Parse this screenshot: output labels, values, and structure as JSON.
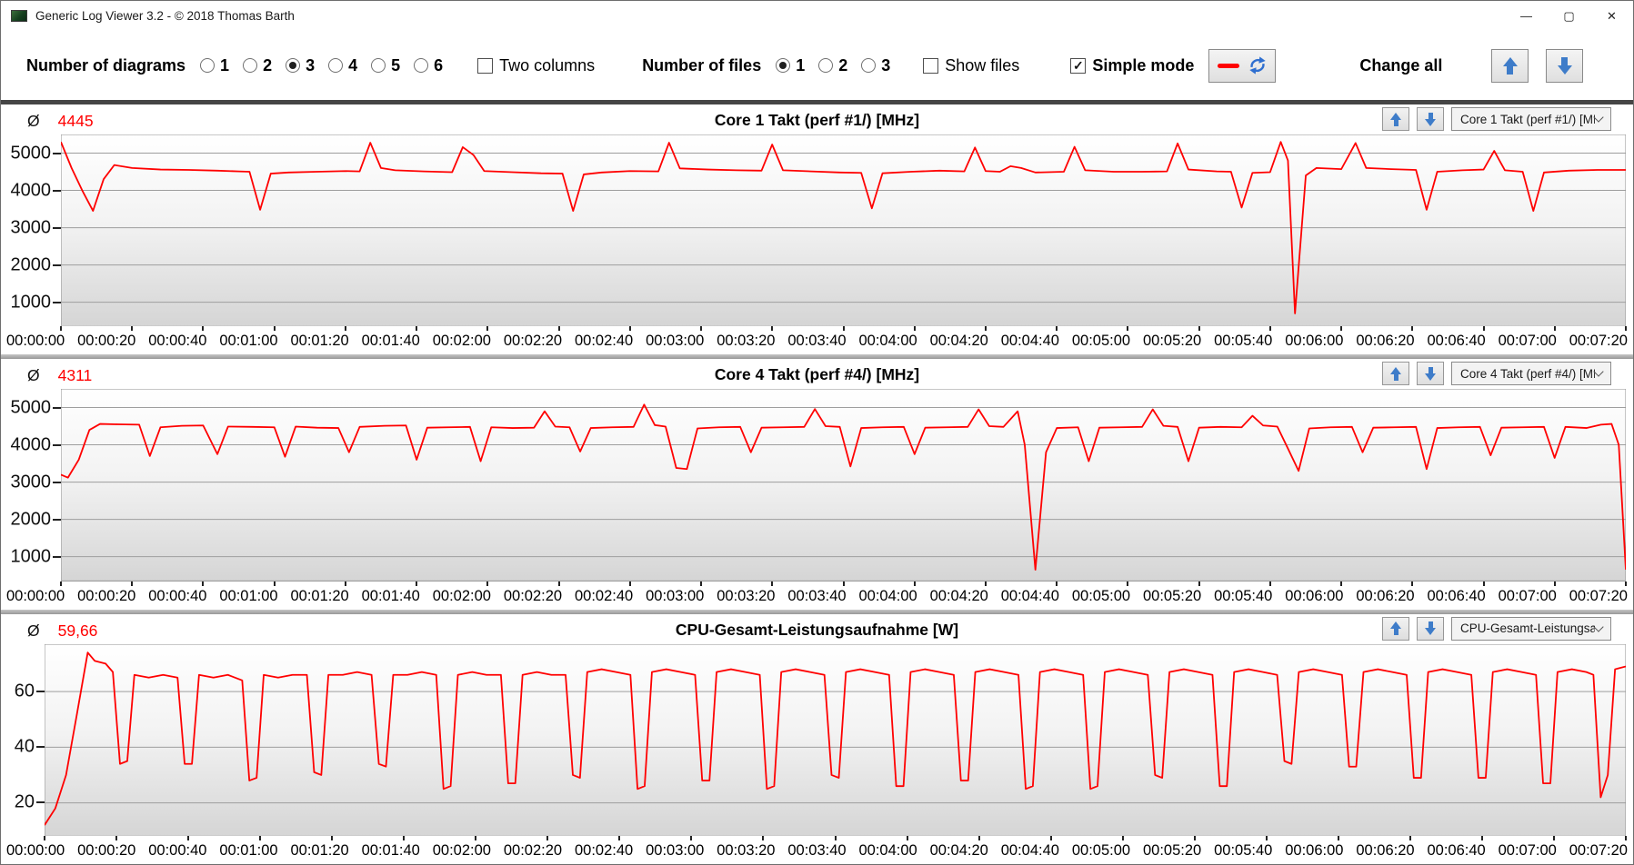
{
  "window": {
    "title": "Generic Log Viewer 3.2 - © 2018 Thomas Barth",
    "icons": {
      "minimize": "—",
      "maximize": "▢",
      "close": "✕"
    }
  },
  "toolbar": {
    "diagrams_label": "Number of diagrams",
    "diagram_options": [
      "1",
      "2",
      "3",
      "4",
      "5",
      "6"
    ],
    "diagrams_selected": "3",
    "two_columns_label": "Two columns",
    "two_columns_checked": false,
    "files_label": "Number of files",
    "file_options": [
      "1",
      "2",
      "3"
    ],
    "files_selected": "1",
    "show_files_label": "Show files",
    "show_files_checked": false,
    "simple_mode_label": "Simple mode",
    "simple_mode_checked": true,
    "change_all_label": "Change all"
  },
  "colors": {
    "line_red": "#ff0000",
    "arrow_blue": "#3e7cc9"
  },
  "x_labels": [
    "00:00:00",
    "00:00:20",
    "00:00:40",
    "00:01:00",
    "00:01:20",
    "00:01:40",
    "00:02:00",
    "00:02:20",
    "00:02:40",
    "00:03:00",
    "00:03:20",
    "00:03:40",
    "00:04:00",
    "00:04:20",
    "00:04:40",
    "00:05:00",
    "00:05:20",
    "00:05:40",
    "00:06:00",
    "00:06:20",
    "00:06:40",
    "00:07:00",
    "00:07:20"
  ],
  "chart_data": [
    {
      "type": "line",
      "title": "Core 1 Takt (perf #1/) [MHz]",
      "avg_symbol": "Ø",
      "average": "4445",
      "dropdown_value": "Core 1 Takt (perf #1/) [MH",
      "line_color": "#ff0000",
      "xlim": [
        0,
        440
      ],
      "x_tick_interval_s": 20,
      "ylim": [
        350,
        5500
      ],
      "yticks": [
        1000,
        2000,
        3000,
        4000,
        5000
      ],
      "series": [
        [
          0,
          5300
        ],
        [
          3,
          4600
        ],
        [
          6,
          4000
        ],
        [
          9,
          3450
        ],
        [
          12,
          4300
        ],
        [
          15,
          4680
        ],
        [
          20,
          4600
        ],
        [
          28,
          4560
        ],
        [
          36,
          4550
        ],
        [
          44,
          4530
        ],
        [
          50,
          4510
        ],
        [
          53,
          4500
        ],
        [
          56,
          3480
        ],
        [
          59,
          4450
        ],
        [
          64,
          4480
        ],
        [
          72,
          4500
        ],
        [
          80,
          4520
        ],
        [
          84,
          4510
        ],
        [
          87,
          5280
        ],
        [
          90,
          4600
        ],
        [
          94,
          4540
        ],
        [
          102,
          4510
        ],
        [
          110,
          4490
        ],
        [
          113,
          5160
        ],
        [
          116,
          4950
        ],
        [
          119,
          4520
        ],
        [
          127,
          4490
        ],
        [
          135,
          4460
        ],
        [
          141,
          4450
        ],
        [
          144,
          3450
        ],
        [
          147,
          4430
        ],
        [
          152,
          4480
        ],
        [
          160,
          4520
        ],
        [
          168,
          4510
        ],
        [
          171,
          5280
        ],
        [
          174,
          4590
        ],
        [
          182,
          4560
        ],
        [
          190,
          4540
        ],
        [
          197,
          4530
        ],
        [
          200,
          5230
        ],
        [
          203,
          4540
        ],
        [
          211,
          4510
        ],
        [
          219,
          4480
        ],
        [
          225,
          4470
        ],
        [
          228,
          3520
        ],
        [
          231,
          4460
        ],
        [
          239,
          4500
        ],
        [
          247,
          4530
        ],
        [
          254,
          4510
        ],
        [
          257,
          5150
        ],
        [
          260,
          4520
        ],
        [
          264,
          4500
        ],
        [
          267,
          4650
        ],
        [
          270,
          4600
        ],
        [
          274,
          4480
        ],
        [
          282,
          4500
        ],
        [
          285,
          5170
        ],
        [
          288,
          4540
        ],
        [
          296,
          4500
        ],
        [
          304,
          4500
        ],
        [
          311,
          4510
        ],
        [
          314,
          5260
        ],
        [
          317,
          4560
        ],
        [
          325,
          4510
        ],
        [
          329,
          4500
        ],
        [
          332,
          3540
        ],
        [
          335,
          4470
        ],
        [
          340,
          4490
        ],
        [
          343,
          5300
        ],
        [
          345,
          4800
        ],
        [
          347,
          700
        ],
        [
          350,
          4400
        ],
        [
          353,
          4600
        ],
        [
          360,
          4570
        ],
        [
          364,
          5270
        ],
        [
          367,
          4600
        ],
        [
          374,
          4570
        ],
        [
          381,
          4550
        ],
        [
          384,
          3480
        ],
        [
          387,
          4500
        ],
        [
          394,
          4540
        ],
        [
          400,
          4560
        ],
        [
          403,
          5060
        ],
        [
          406,
          4540
        ],
        [
          411,
          4500
        ],
        [
          414,
          3450
        ],
        [
          417,
          4480
        ],
        [
          424,
          4530
        ],
        [
          432,
          4550
        ],
        [
          440,
          4550
        ]
      ]
    },
    {
      "type": "line",
      "title": "Core 4 Takt (perf #4/) [MHz]",
      "avg_symbol": "Ø",
      "average": "4311",
      "dropdown_value": "Core 4 Takt (perf #4/) [MH",
      "line_color": "#ff0000",
      "xlim": [
        0,
        440
      ],
      "x_tick_interval_s": 20,
      "ylim": [
        350,
        5500
      ],
      "yticks": [
        1000,
        2000,
        3000,
        4000,
        5000
      ],
      "series": [
        [
          0,
          3200
        ],
        [
          2,
          3120
        ],
        [
          5,
          3600
        ],
        [
          8,
          4400
        ],
        [
          11,
          4560
        ],
        [
          16,
          4550
        ],
        [
          22,
          4540
        ],
        [
          25,
          3700
        ],
        [
          28,
          4470
        ],
        [
          34,
          4510
        ],
        [
          40,
          4520
        ],
        [
          44,
          3750
        ],
        [
          47,
          4490
        ],
        [
          54,
          4480
        ],
        [
          60,
          4470
        ],
        [
          63,
          3680
        ],
        [
          66,
          4490
        ],
        [
          72,
          4460
        ],
        [
          78,
          4450
        ],
        [
          81,
          3800
        ],
        [
          84,
          4480
        ],
        [
          91,
          4510
        ],
        [
          97,
          4520
        ],
        [
          100,
          3600
        ],
        [
          103,
          4460
        ],
        [
          109,
          4470
        ],
        [
          115,
          4480
        ],
        [
          118,
          3560
        ],
        [
          121,
          4470
        ],
        [
          127,
          4450
        ],
        [
          133,
          4460
        ],
        [
          136,
          4900
        ],
        [
          139,
          4490
        ],
        [
          143,
          4470
        ],
        [
          146,
          3820
        ],
        [
          149,
          4450
        ],
        [
          155,
          4470
        ],
        [
          161,
          4480
        ],
        [
          164,
          5080
        ],
        [
          167,
          4530
        ],
        [
          170,
          4490
        ],
        [
          173,
          3380
        ],
        [
          176,
          3350
        ],
        [
          179,
          4440
        ],
        [
          185,
          4470
        ],
        [
          191,
          4480
        ],
        [
          194,
          3800
        ],
        [
          197,
          4460
        ],
        [
          203,
          4470
        ],
        [
          209,
          4480
        ],
        [
          212,
          4960
        ],
        [
          215,
          4500
        ],
        [
          219,
          4480
        ],
        [
          222,
          3420
        ],
        [
          225,
          4450
        ],
        [
          231,
          4470
        ],
        [
          237,
          4480
        ],
        [
          240,
          3750
        ],
        [
          243,
          4460
        ],
        [
          249,
          4470
        ],
        [
          255,
          4480
        ],
        [
          258,
          4950
        ],
        [
          261,
          4500
        ],
        [
          265,
          4480
        ],
        [
          269,
          4900
        ],
        [
          271,
          4000
        ],
        [
          274,
          650
        ],
        [
          277,
          3800
        ],
        [
          280,
          4450
        ],
        [
          286,
          4470
        ],
        [
          289,
          3560
        ],
        [
          292,
          4460
        ],
        [
          298,
          4470
        ],
        [
          304,
          4480
        ],
        [
          307,
          4950
        ],
        [
          310,
          4510
        ],
        [
          314,
          4480
        ],
        [
          317,
          3560
        ],
        [
          320,
          4460
        ],
        [
          326,
          4480
        ],
        [
          332,
          4470
        ],
        [
          335,
          4780
        ],
        [
          338,
          4520
        ],
        [
          342,
          4490
        ],
        [
          345,
          3900
        ],
        [
          348,
          3300
        ],
        [
          351,
          4440
        ],
        [
          357,
          4470
        ],
        [
          363,
          4480
        ],
        [
          366,
          3800
        ],
        [
          369,
          4460
        ],
        [
          375,
          4470
        ],
        [
          381,
          4480
        ],
        [
          384,
          3350
        ],
        [
          387,
          4450
        ],
        [
          393,
          4470
        ],
        [
          399,
          4480
        ],
        [
          402,
          3720
        ],
        [
          405,
          4460
        ],
        [
          411,
          4470
        ],
        [
          417,
          4480
        ],
        [
          420,
          3650
        ],
        [
          423,
          4480
        ],
        [
          429,
          4450
        ],
        [
          433,
          4540
        ],
        [
          436,
          4560
        ],
        [
          438,
          4000
        ],
        [
          440,
          650
        ]
      ]
    },
    {
      "type": "line",
      "title": "CPU-Gesamt-Leistungsaufnahme [W]",
      "avg_symbol": "Ø",
      "average": "59,66",
      "dropdown_value": "CPU-Gesamt-Leistungsau",
      "line_color": "#ff0000",
      "xlim": [
        0,
        440
      ],
      "x_tick_interval_s": 20,
      "ylim": [
        8,
        77
      ],
      "yticks": [
        20,
        40,
        60
      ],
      "series": [
        [
          0,
          12
        ],
        [
          3,
          18
        ],
        [
          6,
          30
        ],
        [
          9,
          52
        ],
        [
          12,
          74
        ],
        [
          14,
          71
        ],
        [
          17,
          70
        ],
        [
          19,
          67
        ],
        [
          21,
          34
        ],
        [
          23,
          35
        ],
        [
          25,
          66
        ],
        [
          29,
          65
        ],
        [
          33,
          66
        ],
        [
          37,
          65
        ],
        [
          39,
          34
        ],
        [
          41,
          34
        ],
        [
          43,
          66
        ],
        [
          47,
          65
        ],
        [
          51,
          66
        ],
        [
          55,
          64
        ],
        [
          57,
          28
        ],
        [
          59,
          29
        ],
        [
          61,
          66
        ],
        [
          65,
          65
        ],
        [
          69,
          66
        ],
        [
          73,
          66
        ],
        [
          75,
          31
        ],
        [
          77,
          30
        ],
        [
          79,
          66
        ],
        [
          83,
          66
        ],
        [
          87,
          67
        ],
        [
          91,
          66
        ],
        [
          93,
          34
        ],
        [
          95,
          33
        ],
        [
          97,
          66
        ],
        [
          101,
          66
        ],
        [
          105,
          67
        ],
        [
          109,
          66
        ],
        [
          111,
          25
        ],
        [
          113,
          26
        ],
        [
          115,
          66
        ],
        [
          119,
          67
        ],
        [
          123,
          66
        ],
        [
          127,
          66
        ],
        [
          129,
          27
        ],
        [
          131,
          27
        ],
        [
          133,
          66
        ],
        [
          137,
          67
        ],
        [
          141,
          66
        ],
        [
          145,
          66
        ],
        [
          147,
          30
        ],
        [
          149,
          29
        ],
        [
          151,
          67
        ],
        [
          155,
          68
        ],
        [
          159,
          67
        ],
        [
          163,
          66
        ],
        [
          165,
          25
        ],
        [
          167,
          26
        ],
        [
          169,
          67
        ],
        [
          173,
          68
        ],
        [
          177,
          67
        ],
        [
          181,
          66
        ],
        [
          183,
          28
        ],
        [
          185,
          28
        ],
        [
          187,
          67
        ],
        [
          191,
          68
        ],
        [
          195,
          67
        ],
        [
          199,
          66
        ],
        [
          201,
          25
        ],
        [
          203,
          26
        ],
        [
          205,
          67
        ],
        [
          209,
          68
        ],
        [
          213,
          67
        ],
        [
          217,
          66
        ],
        [
          219,
          30
        ],
        [
          221,
          29
        ],
        [
          223,
          67
        ],
        [
          227,
          68
        ],
        [
          231,
          67
        ],
        [
          235,
          66
        ],
        [
          237,
          26
        ],
        [
          239,
          26
        ],
        [
          241,
          67
        ],
        [
          245,
          68
        ],
        [
          249,
          67
        ],
        [
          253,
          66
        ],
        [
          255,
          28
        ],
        [
          257,
          28
        ],
        [
          259,
          67
        ],
        [
          263,
          68
        ],
        [
          267,
          67
        ],
        [
          271,
          66
        ],
        [
          273,
          25
        ],
        [
          275,
          26
        ],
        [
          277,
          67
        ],
        [
          281,
          68
        ],
        [
          285,
          67
        ],
        [
          289,
          66
        ],
        [
          291,
          25
        ],
        [
          293,
          26
        ],
        [
          295,
          67
        ],
        [
          299,
          68
        ],
        [
          303,
          67
        ],
        [
          307,
          66
        ],
        [
          309,
          30
        ],
        [
          311,
          29
        ],
        [
          313,
          67
        ],
        [
          317,
          68
        ],
        [
          321,
          67
        ],
        [
          325,
          66
        ],
        [
          327,
          26
        ],
        [
          329,
          26
        ],
        [
          331,
          67
        ],
        [
          335,
          68
        ],
        [
          339,
          67
        ],
        [
          343,
          66
        ],
        [
          345,
          35
        ],
        [
          347,
          34
        ],
        [
          349,
          67
        ],
        [
          353,
          68
        ],
        [
          357,
          67
        ],
        [
          361,
          66
        ],
        [
          363,
          33
        ],
        [
          365,
          33
        ],
        [
          367,
          67
        ],
        [
          371,
          68
        ],
        [
          375,
          67
        ],
        [
          379,
          66
        ],
        [
          381,
          29
        ],
        [
          383,
          29
        ],
        [
          385,
          67
        ],
        [
          389,
          68
        ],
        [
          393,
          67
        ],
        [
          397,
          66
        ],
        [
          399,
          29
        ],
        [
          401,
          29
        ],
        [
          403,
          67
        ],
        [
          407,
          68
        ],
        [
          411,
          67
        ],
        [
          415,
          66
        ],
        [
          417,
          27
        ],
        [
          419,
          27
        ],
        [
          421,
          67
        ],
        [
          425,
          68
        ],
        [
          429,
          67
        ],
        [
          431,
          66
        ],
        [
          433,
          22
        ],
        [
          435,
          30
        ],
        [
          437,
          68
        ],
        [
          440,
          69
        ]
      ]
    }
  ]
}
